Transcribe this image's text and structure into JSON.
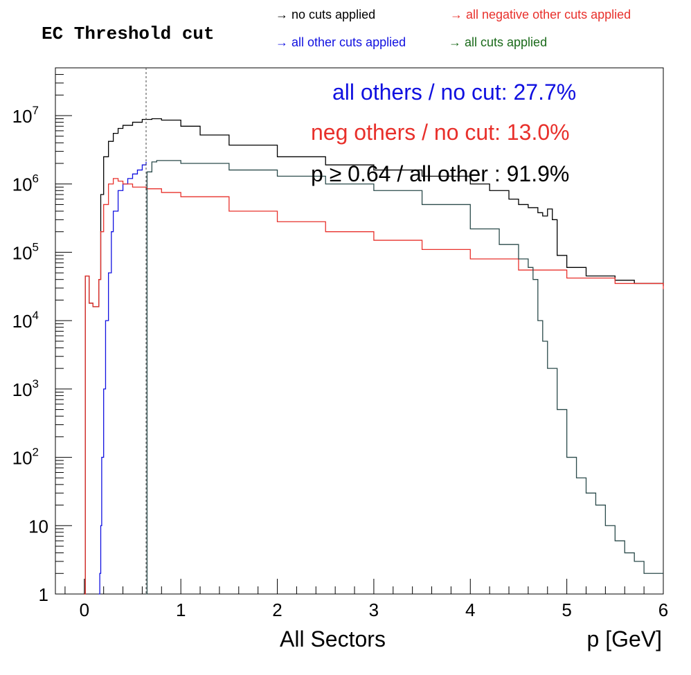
{
  "title": "EC Threshold cut",
  "legend": [
    {
      "label": "→ no cuts applied",
      "color": "#000000",
      "position": "top-left"
    },
    {
      "label": "→ all negative other cuts applied",
      "color": "#e8302b",
      "position": "top-right"
    },
    {
      "label": "→ all other cuts applied",
      "color": "#1010e0",
      "position": "second-row-left"
    },
    {
      "label": "→ all cuts applied",
      "color": "#1a6a1a",
      "position": "second-row-right"
    }
  ],
  "annotations": [
    {
      "text": "all others / no cut:  27.7%",
      "color": "#1010e0"
    },
    {
      "text": "neg others / no cut:  13.0%",
      "color": "#e8302b"
    },
    {
      "text": "p  ≥ 0.64 / all other :  91.9%",
      "color": "#000000"
    }
  ],
  "chart_data": {
    "type": "line",
    "title": "EC Threshold cut",
    "xlabel": "p [GeV]",
    "xlabel_left": "All Sectors",
    "ylabel": "",
    "xlim": [
      -0.3,
      6
    ],
    "ylim": [
      1,
      50000000
    ],
    "y_scale": "log",
    "x_ticks": [
      "0",
      "1",
      "2",
      "3",
      "4",
      "5",
      "6"
    ],
    "y_ticks": [
      {
        "base": "1",
        "exp": ""
      },
      {
        "base": "10",
        "exp": ""
      },
      {
        "base": "10",
        "exp": "2"
      },
      {
        "base": "10",
        "exp": "3"
      },
      {
        "base": "10",
        "exp": "4"
      },
      {
        "base": "10",
        "exp": "5"
      },
      {
        "base": "10",
        "exp": "6"
      },
      {
        "base": "10",
        "exp": "7"
      }
    ],
    "cut_line_x": 0.64,
    "series": [
      {
        "key": "no-cuts",
        "color": "#000000",
        "x": [
          0.0,
          0.01,
          0.05,
          0.09,
          0.12,
          0.15,
          0.17,
          0.2,
          0.25,
          0.3,
          0.35,
          0.4,
          0.5,
          0.6,
          0.7,
          0.8,
          1.0,
          1.2,
          1.5,
          2.0,
          2.5,
          3.0,
          3.5,
          4.0,
          4.2,
          4.4,
          4.5,
          4.6,
          4.7,
          4.75,
          4.8,
          4.85,
          4.9,
          5.0,
          5.2,
          5.5,
          5.7,
          6.0
        ],
        "y": [
          1,
          45000,
          18000,
          16000,
          16000,
          40000,
          700000,
          2500000,
          4200000,
          5500000,
          6500000,
          7200000,
          8000000,
          8800000,
          9000000,
          8600000,
          7000000,
          5200000,
          3700000,
          2500000,
          1900000,
          1600000,
          1300000,
          1000000,
          800000,
          600000,
          500000,
          450000,
          380000,
          340000,
          430000,
          300000,
          90000,
          60000,
          45000,
          39000,
          35000,
          32000
        ]
      },
      {
        "key": "all-other-cuts",
        "color": "#1010e0",
        "x": [
          0.15,
          0.16,
          0.17,
          0.18,
          0.2,
          0.22,
          0.25,
          0.28,
          0.3,
          0.35,
          0.4,
          0.45,
          0.5,
          0.55,
          0.6,
          0.64
        ],
        "y": [
          1,
          2,
          10,
          100,
          1000,
          10000,
          50000,
          200000,
          400000,
          800000,
          1000000,
          1200000,
          1400000,
          1600000,
          1900000,
          2100000
        ]
      },
      {
        "key": "all-negative-other-cuts",
        "color": "#e8302b",
        "x": [
          0.0,
          0.01,
          0.05,
          0.09,
          0.12,
          0.15,
          0.17,
          0.2,
          0.25,
          0.3,
          0.35,
          0.4,
          0.5,
          0.64,
          0.8,
          1.0,
          1.5,
          2.0,
          2.5,
          3.0,
          3.5,
          4.0,
          4.5,
          5.0,
          5.5,
          6.0
        ],
        "y": [
          1,
          45000,
          18000,
          16000,
          16000,
          40000,
          200000,
          500000,
          1000000,
          1200000,
          1100000,
          1000000,
          900000,
          850000,
          750000,
          650000,
          400000,
          280000,
          200000,
          150000,
          110000,
          80000,
          55000,
          42000,
          35000,
          29000
        ]
      },
      {
        "key": "all-cuts",
        "color": "#2a4a4a",
        "x": [
          0.64,
          0.65,
          0.7,
          0.75,
          0.8,
          1.0,
          1.5,
          2.0,
          2.5,
          3.0,
          3.5,
          4.0,
          4.3,
          4.5,
          4.6,
          4.65,
          4.7,
          4.75,
          4.8,
          4.9,
          5.0,
          5.1,
          5.2,
          5.3,
          5.4,
          5.5,
          5.6,
          5.7,
          5.8,
          5.9,
          6.0
        ],
        "y": [
          1,
          1500000,
          2100000,
          2200000,
          2200000,
          2000000,
          1600000,
          1300000,
          1000000,
          800000,
          500000,
          220000,
          130000,
          80000,
          60000,
          40000,
          10000,
          5000,
          2000,
          500,
          100,
          50,
          30,
          20,
          10,
          6,
          4,
          3,
          2,
          2,
          2
        ]
      }
    ]
  }
}
